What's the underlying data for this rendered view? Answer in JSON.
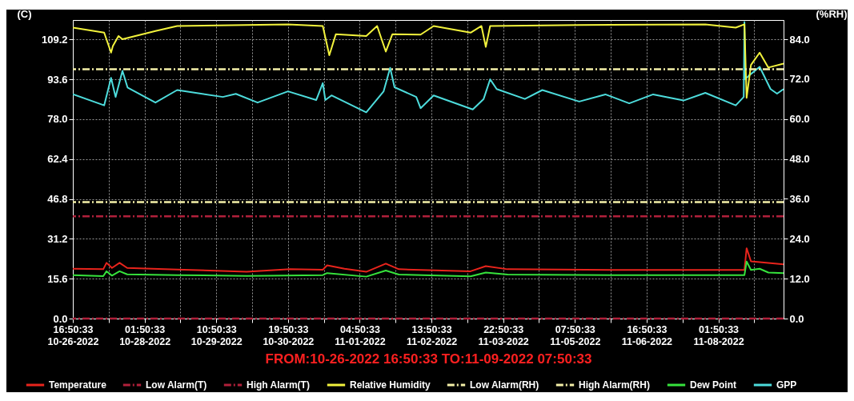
{
  "chart_data": {
    "type": "line",
    "ylabel": "(C)",
    "y2label": "(%RH)",
    "xlabel": "FROM:10-26-2022 16:50:33    TO:11-09-2022 07:50:33",
    "xlim": [
      "2022-10-26T16:50",
      "2022-11-09T07:50"
    ],
    "xticks": [
      {
        "value": "2022-10-26T16:50",
        "label": "16:50:33\n10-26-2022"
      },
      {
        "value": "2022-10-27T09:20",
        "label": null
      },
      {
        "value": "2022-10-28T01:50",
        "label": "01:50:33\n10-28-2022"
      },
      {
        "value": "2022-10-28T18:20",
        "label": null
      },
      {
        "value": "2022-10-29T10:50",
        "label": "10:50:33\n10-29-2022"
      },
      {
        "value": "2022-10-30T03:20",
        "label": null
      },
      {
        "value": "2022-10-30T19:50",
        "label": "19:50:33\n10-30-2022"
      },
      {
        "value": "2022-10-31T12:20",
        "label": null
      },
      {
        "value": "2022-11-01T04:50",
        "label": "04:50:33\n11-01-2022"
      },
      {
        "value": "2022-11-01T21:20",
        "label": null
      },
      {
        "value": "2022-11-02T13:50",
        "label": "13:50:33\n11-02-2022"
      },
      {
        "value": "2022-11-03T06:20",
        "label": null
      },
      {
        "value": "2022-11-03T22:50",
        "label": "22:50:33\n11-03-2022"
      },
      {
        "value": "2022-11-04T15:20",
        "label": null
      },
      {
        "value": "2022-11-05T07:50",
        "label": "07:50:33\n11-05-2022"
      },
      {
        "value": "2022-11-06T00:20",
        "label": null
      },
      {
        "value": "2022-11-06T16:50",
        "label": "16:50:33\n11-06-2022"
      },
      {
        "value": "2022-11-07T09:20",
        "label": null
      },
      {
        "value": "2022-11-08T01:50",
        "label": "01:50:33\n11-08-2022"
      },
      {
        "value": "2022-11-08T18:20",
        "label": null
      }
    ],
    "ylim": [
      0,
      116.8
    ],
    "yticks": [
      {
        "value": 0,
        "label": "0.0"
      },
      {
        "value": 15.6,
        "label": "15.6"
      },
      {
        "value": 31.2,
        "label": "31.2"
      },
      {
        "value": 46.8,
        "label": "46.8"
      },
      {
        "value": 62.4,
        "label": "62.4"
      },
      {
        "value": 78,
        "label": "78.0"
      },
      {
        "value": 93.6,
        "label": "93.6"
      },
      {
        "value": 109.2,
        "label": "109.2"
      }
    ],
    "y2lim": [
      0,
      89.8
    ],
    "y2ticks": [
      {
        "value": 0,
        "label": "0.0"
      },
      {
        "value": 12,
        "label": "12.0"
      },
      {
        "value": 24,
        "label": "24.0"
      },
      {
        "value": 36,
        "label": "36.0"
      },
      {
        "value": 48,
        "label": "48.0"
      },
      {
        "value": 60,
        "label": "60.0"
      },
      {
        "value": 72,
        "label": "72.0"
      },
      {
        "value": 84,
        "label": "84.0"
      }
    ],
    "grid": true,
    "legend": "bottom",
    "line_style": "solid",
    "series": [
      {
        "name": "Temperature",
        "color": "#e8241c",
        "x": [
          "2022-10-26T16:50",
          "2022-10-27T06:50",
          "2022-10-27T08:20",
          "2022-10-27T10:50",
          "2022-10-27T14:20",
          "2022-10-27T17:50",
          "2022-10-28T16:50",
          "2022-10-30T00:50",
          "2022-10-30T20:50",
          "2022-10-31T11:50",
          "2022-10-31T13:50",
          "2022-10-31T21:50",
          "2022-11-01T07:50",
          "2022-11-01T16:50",
          "2022-11-01T22:50",
          "2022-11-03T07:50",
          "2022-11-03T14:50",
          "2022-11-04T00:50",
          "2022-11-06T02:50",
          "2022-11-08T13:50",
          "2022-11-08T14:50",
          "2022-11-08T16:50",
          "2022-11-09T07:50"
        ],
        "values": [
          19.5,
          19.3,
          21.8,
          19.8,
          21.8,
          19.8,
          19.2,
          18.3,
          19.3,
          19.1,
          20.8,
          19.5,
          18.3,
          21.5,
          19.3,
          18.5,
          20.5,
          19.3,
          19.0,
          19.0,
          27.5,
          22.4,
          21.2
        ]
      },
      {
        "name": "Relative Humidity",
        "color": "#f2f23c",
        "axis": "y2",
        "x": [
          "2022-10-26T16:50",
          "2022-10-27T07:15",
          "2022-10-27T10:25",
          "2022-10-27T11:15",
          "2022-10-27T13:50",
          "2022-10-27T15:40",
          "2022-10-28T06:50",
          "2022-10-28T16:50",
          "2022-10-30T19:50",
          "2022-10-31T11:50",
          "2022-10-31T14:50",
          "2022-10-31T17:50",
          "2022-11-01T07:50",
          "2022-11-01T12:50",
          "2022-11-01T16:50",
          "2022-11-01T19:50",
          "2022-11-02T08:50",
          "2022-11-02T14:50",
          "2022-11-03T07:50",
          "2022-11-03T12:50",
          "2022-11-03T14:50",
          "2022-11-03T16:50",
          "2022-11-05T09:50",
          "2022-11-07T19:50",
          "2022-11-08T09:50",
          "2022-11-08T13:50",
          "2022-11-08T14:50",
          "2022-11-08T16:50",
          "2022-11-08T20:50",
          "2022-11-09T00:50",
          "2022-11-09T07:50"
        ],
        "values": [
          87.5,
          86,
          80,
          82,
          85,
          84,
          86.5,
          88,
          88.5,
          88,
          79.2,
          85.5,
          85,
          88,
          80.3,
          85.5,
          85.4,
          88,
          86,
          88,
          81.7,
          88,
          88.3,
          88.5,
          87.5,
          88.5,
          66.4,
          76.3,
          80,
          75.5,
          76.7
        ]
      },
      {
        "name": "Dew Point",
        "color": "#36e23c",
        "x": [
          "2022-10-26T16:50",
          "2022-10-27T06:50",
          "2022-10-27T08:20",
          "2022-10-27T10:50",
          "2022-10-27T14:20",
          "2022-10-27T17:50",
          "2022-10-28T16:50",
          "2022-10-30T00:50",
          "2022-10-31T11:50",
          "2022-10-31T13:50",
          "2022-11-01T07:50",
          "2022-11-01T16:50",
          "2022-11-01T22:50",
          "2022-11-03T07:50",
          "2022-11-03T14:50",
          "2022-11-04T00:50",
          "2022-11-06T02:50",
          "2022-11-08T13:50",
          "2022-11-08T14:50",
          "2022-11-08T16:50",
          "2022-11-08T20:50",
          "2022-11-09T00:50",
          "2022-11-09T07:50"
        ],
        "values": [
          17.0,
          16.6,
          18.5,
          16.8,
          18.5,
          17.3,
          17.0,
          16.7,
          17.0,
          17.8,
          16.4,
          18.8,
          17.2,
          16.5,
          18.0,
          17.2,
          17.0,
          17.0,
          22.3,
          19.0,
          19.5,
          18.0,
          17.8
        ]
      },
      {
        "name": "GPP",
        "color": "#4ddcdc",
        "x": [
          "2022-10-26T16:50",
          "2022-10-27T07:15",
          "2022-10-27T10:25",
          "2022-10-27T12:30",
          "2022-10-27T15:40",
          "2022-10-27T18:00",
          "2022-10-28T06:50",
          "2022-10-28T16:50",
          "2022-10-29T13:50",
          "2022-10-29T19:50",
          "2022-10-30T05:50",
          "2022-10-30T19:50",
          "2022-10-31T08:50",
          "2022-10-31T11:50",
          "2022-10-31T13:00",
          "2022-10-31T15:50",
          "2022-11-01T07:50",
          "2022-11-01T15:50",
          "2022-11-01T18:50",
          "2022-11-01T20:50",
          "2022-11-02T06:50",
          "2022-11-02T08:50",
          "2022-11-02T14:50",
          "2022-11-03T08:50",
          "2022-11-03T13:50",
          "2022-11-03T16:50",
          "2022-11-03T19:50",
          "2022-11-04T08:50",
          "2022-11-04T16:50",
          "2022-11-05T09:50",
          "2022-11-05T21:50",
          "2022-11-06T08:50",
          "2022-11-06T19:50",
          "2022-11-07T09:50",
          "2022-11-07T19:50",
          "2022-11-08T09:50",
          "2022-11-08T13:30",
          "2022-11-08T13:50",
          "2022-11-08T14:10",
          "2022-11-08T15:50",
          "2022-11-08T20:50",
          "2022-11-09T01:50",
          "2022-11-09T04:50",
          "2022-11-09T07:50"
        ],
        "values": [
          87.8,
          83.4,
          94.2,
          86.7,
          96.9,
          90.4,
          84.5,
          89.4,
          86.7,
          87.9,
          84.5,
          88.9,
          85.5,
          92.1,
          85.5,
          87.3,
          80.7,
          88.9,
          98.1,
          90.5,
          86.7,
          82.3,
          87.3,
          81.8,
          85.9,
          93.6,
          89.8,
          85.9,
          89.4,
          84.9,
          87.7,
          84.2,
          87.7,
          85.3,
          88.3,
          83.4,
          86.7,
          116,
          93.6,
          95,
          98.5,
          89.8,
          88,
          89.8
        ]
      }
    ],
    "ref_lines": [
      {
        "axis": "y",
        "value": 0,
        "label": "Low Alarm(T)",
        "color": "#b0203a",
        "line_style": "dashed"
      },
      {
        "axis": "y",
        "value": 40,
        "label": "High Alarm(T)",
        "color": "#b0203a",
        "line_style": "dashed"
      },
      {
        "axis": "y2",
        "value": 35,
        "label": "Low Alarm(RH)",
        "color": "#f4f0a8",
        "line_style": "dashed"
      },
      {
        "axis": "y2",
        "value": 75,
        "label": "High Alarm(RH)",
        "color": "#f4f0a8",
        "line_style": "dashed"
      }
    ]
  }
}
